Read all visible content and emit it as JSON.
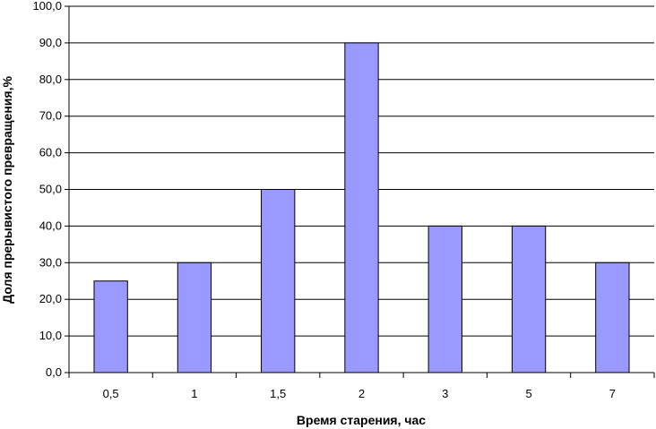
{
  "chart_data": {
    "type": "bar",
    "title": "",
    "xlabel": "Время старения, час",
    "ylabel": "Доля прерывистого превращения,%",
    "categories": [
      "0,5",
      "1",
      "1,5",
      "2",
      "3",
      "5",
      "7"
    ],
    "values": [
      25,
      30,
      50,
      90,
      40,
      40,
      30
    ],
    "ylim": [
      0,
      100
    ],
    "yticks": [
      "0,0",
      "10,0",
      "20,0",
      "30,0",
      "40,0",
      "50,0",
      "60,0",
      "70,0",
      "80,0",
      "90,0",
      "100,0"
    ],
    "grid": true,
    "legend": "none",
    "bar_color": "#9999ff",
    "bar_edge_color": "#000000"
  }
}
